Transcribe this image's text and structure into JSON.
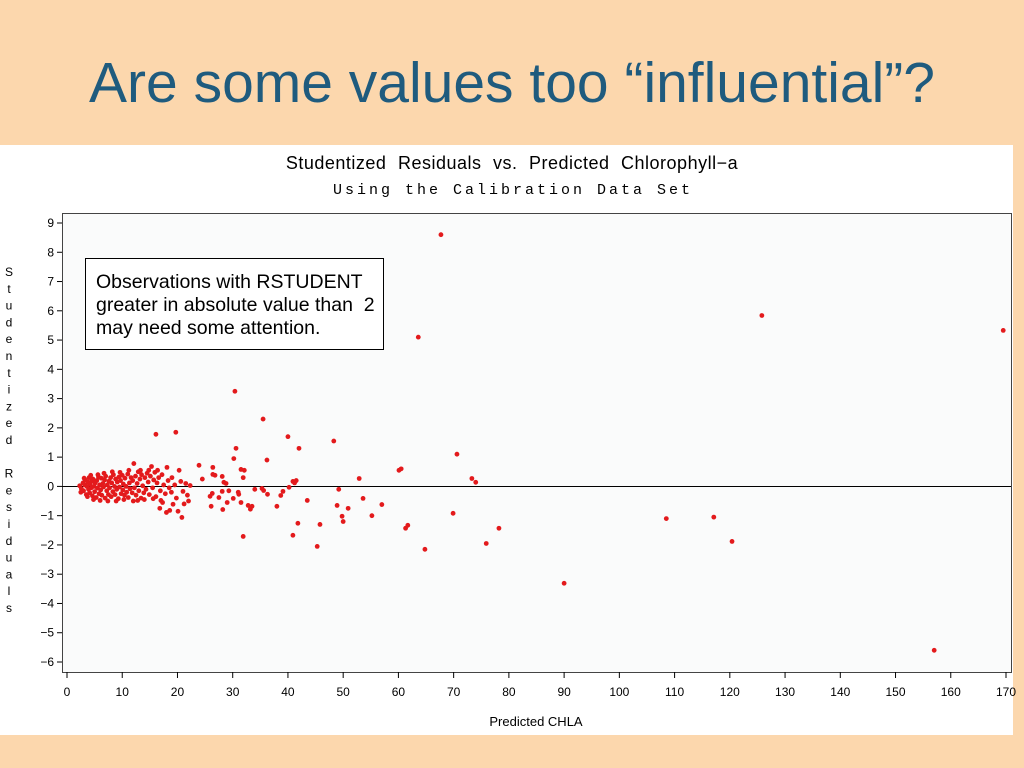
{
  "slide": {
    "title": "Are some values too “influential”?"
  },
  "colors": {
    "background": "#FCD7AD",
    "title": "#1F5B7E",
    "marker": "#E31A1C",
    "reference_line": "#000000"
  },
  "chart_data": {
    "type": "scatter",
    "title": "Studentized Residuals vs. Predicted Chlorophyll−a",
    "subtitle": "Using the Calibration Data Set",
    "xlabel": "Predicted CHLA",
    "ylabel": "Studentized Residuals",
    "xlim": [
      0,
      170
    ],
    "ylim": [
      -6,
      9
    ],
    "xticks": [
      0,
      10,
      20,
      30,
      40,
      50,
      60,
      70,
      80,
      90,
      100,
      110,
      120,
      130,
      140,
      150,
      160,
      170
    ],
    "yticks": [
      9,
      8,
      7,
      6,
      5,
      4,
      3,
      2,
      1,
      0,
      -1,
      -2,
      -3,
      -4,
      -5,
      -6
    ],
    "ytick_labels": [
      "9",
      "8",
      "7",
      "6",
      "5",
      "4",
      "3",
      "2",
      "1",
      "0",
      "−1",
      "−2",
      "−3",
      "−4",
      "−5",
      "−6"
    ],
    "reference_line_y": 0,
    "grid": false,
    "annotation": {
      "placement": "top-left",
      "lines": [
        "Observations with RSTUDENT",
        "greater in absolute value than  2",
        "may need some attention."
      ]
    },
    "series": [
      {
        "points": [
          [
            2.3,
            0.02
          ],
          [
            2.5,
            -0.2
          ],
          [
            2.6,
            -0.08
          ],
          [
            2.9,
            0.12
          ],
          [
            3.0,
            -0.15
          ],
          [
            3.1,
            0.28
          ],
          [
            3.2,
            0.05
          ],
          [
            3.3,
            0.22
          ],
          [
            3.5,
            -0.28
          ],
          [
            3.6,
            0.0
          ],
          [
            3.7,
            -0.35
          ],
          [
            3.8,
            0.15
          ],
          [
            3.9,
            -0.1
          ],
          [
            4.0,
            0.3
          ],
          [
            4.1,
            -0.22
          ],
          [
            4.2,
            0.08
          ],
          [
            4.3,
            0.38
          ],
          [
            4.4,
            -0.05
          ],
          [
            4.5,
            0.18
          ],
          [
            4.6,
            -0.32
          ],
          [
            4.7,
            0.25
          ],
          [
            4.8,
            -0.45
          ],
          [
            4.9,
            0.0
          ],
          [
            5.0,
            -0.18
          ],
          [
            5.1,
            0.12
          ],
          [
            5.3,
            -0.38
          ],
          [
            5.4,
            0.2
          ],
          [
            5.5,
            -0.06
          ],
          [
            5.6,
            0.4
          ],
          [
            5.7,
            0.32
          ],
          [
            5.8,
            -0.25
          ],
          [
            5.9,
            0.05
          ],
          [
            6.0,
            -0.48
          ],
          [
            6.1,
            -0.12
          ],
          [
            6.2,
            0.28
          ],
          [
            6.3,
            -0.3
          ],
          [
            6.5,
            0.1
          ],
          [
            6.6,
            -0.02
          ],
          [
            6.7,
            0.45
          ],
          [
            6.8,
            0.22
          ],
          [
            6.9,
            -0.4
          ],
          [
            7.0,
            0.35
          ],
          [
            7.2,
            -0.15
          ],
          [
            7.3,
            0.05
          ],
          [
            7.4,
            -0.5
          ],
          [
            7.5,
            -0.28
          ],
          [
            7.6,
            0.18
          ],
          [
            7.7,
            -0.05
          ],
          [
            7.9,
            0.3
          ],
          [
            8.0,
            -0.35
          ],
          [
            8.1,
            0.12
          ],
          [
            8.2,
            0.5
          ],
          [
            8.3,
            -0.18
          ],
          [
            8.4,
            0.4
          ],
          [
            8.6,
            0.0
          ],
          [
            8.7,
            -0.28
          ],
          [
            8.8,
            0.25
          ],
          [
            8.9,
            -0.5
          ],
          [
            9.0,
            -0.1
          ],
          [
            9.1,
            0.15
          ],
          [
            9.3,
            -0.42
          ],
          [
            9.4,
            0.32
          ],
          [
            9.5,
            -0.02
          ],
          [
            9.6,
            0.48
          ],
          [
            9.7,
            0.2
          ],
          [
            9.8,
            -0.25
          ],
          [
            10.0,
            0.38
          ],
          [
            10.1,
            -0.12
          ],
          [
            10.2,
            0.08
          ],
          [
            10.3,
            -0.45
          ],
          [
            10.4,
            -0.3
          ],
          [
            10.5,
            0.28
          ],
          [
            10.7,
            0.0
          ],
          [
            10.8,
            -0.2
          ],
          [
            11.0,
            0.42
          ],
          [
            11.1,
            -0.38
          ],
          [
            11.2,
            0.55
          ],
          [
            11.3,
            0.12
          ],
          [
            11.4,
            -0.08
          ],
          [
            11.6,
            0.3
          ],
          [
            11.8,
            -0.22
          ],
          [
            11.9,
            0.2
          ],
          [
            12.0,
            -0.5
          ],
          [
            12.1,
            0.78
          ],
          [
            12.2,
            -0.05
          ],
          [
            12.4,
            0.35
          ],
          [
            12.5,
            -0.3
          ],
          [
            12.7,
            0.1
          ],
          [
            12.8,
            -0.48
          ],
          [
            12.9,
            0.5
          ],
          [
            13.0,
            -0.15
          ],
          [
            13.2,
            0.25
          ],
          [
            13.3,
            0.55
          ],
          [
            13.4,
            -0.4
          ],
          [
            13.5,
            0.4
          ],
          [
            13.7,
            0.02
          ],
          [
            13.9,
            -0.22
          ],
          [
            14.0,
            -0.45
          ],
          [
            14.1,
            0.3
          ],
          [
            14.3,
            -0.1
          ],
          [
            14.5,
            0.45
          ],
          [
            14.7,
            0.15
          ],
          [
            14.8,
            0.55
          ],
          [
            14.9,
            -0.28
          ],
          [
            15.1,
            0.35
          ],
          [
            15.3,
            0.68
          ],
          [
            15.5,
            -0.05
          ],
          [
            15.6,
            -0.42
          ],
          [
            15.7,
            0.22
          ],
          [
            15.9,
            0.48
          ],
          [
            16.1,
            -0.35
          ],
          [
            16.1,
            1.78
          ],
          [
            16.3,
            0.12
          ],
          [
            16.4,
            0.55
          ],
          [
            16.6,
            0.3
          ],
          [
            16.8,
            -0.75
          ],
          [
            16.9,
            -0.15
          ],
          [
            17.0,
            -0.48
          ],
          [
            17.2,
            0.4
          ],
          [
            17.3,
            -0.55
          ],
          [
            17.5,
            0.05
          ],
          [
            17.8,
            -0.25
          ],
          [
            18.0,
            -0.89
          ],
          [
            18.1,
            0.65
          ],
          [
            18.3,
            0.2
          ],
          [
            18.5,
            -0.05
          ],
          [
            18.6,
            -0.82
          ],
          [
            18.9,
            -0.2
          ],
          [
            19.0,
            0.3
          ],
          [
            19.2,
            -0.61
          ],
          [
            19.5,
            0.05
          ],
          [
            19.7,
            1.85
          ],
          [
            19.8,
            -0.4
          ],
          [
            20.1,
            -0.85
          ],
          [
            20.3,
            0.55
          ],
          [
            20.6,
            0.17
          ],
          [
            20.8,
            -1.06
          ],
          [
            21.0,
            -0.17
          ],
          [
            21.2,
            -0.6
          ],
          [
            21.5,
            0.1
          ],
          [
            21.8,
            -0.3
          ],
          [
            22.0,
            -0.5
          ],
          [
            22.3,
            0.03
          ],
          [
            23.9,
            0.72
          ],
          [
            24.5,
            0.25
          ],
          [
            25.9,
            -0.34
          ],
          [
            26.1,
            -0.68
          ],
          [
            26.3,
            -0.24
          ],
          [
            26.4,
            0.65
          ],
          [
            26.4,
            0.41
          ],
          [
            26.8,
            0.38
          ],
          [
            27.5,
            -0.38
          ],
          [
            28.1,
            -0.17
          ],
          [
            28.1,
            0.34
          ],
          [
            28.2,
            -0.79
          ],
          [
            28.4,
            0.14
          ],
          [
            28.8,
            0.1
          ],
          [
            29.0,
            -0.55
          ],
          [
            29.3,
            -0.15
          ],
          [
            30.1,
            -0.41
          ],
          [
            30.2,
            0.95
          ],
          [
            30.4,
            3.25
          ],
          [
            30.6,
            1.3
          ],
          [
            31.0,
            -0.2
          ],
          [
            31.1,
            -0.27
          ],
          [
            31.5,
            0.58
          ],
          [
            31.5,
            -0.55
          ],
          [
            31.9,
            0.3
          ],
          [
            31.9,
            -1.71
          ],
          [
            32.1,
            0.55
          ],
          [
            32.8,
            -0.65
          ],
          [
            33.2,
            -0.78
          ],
          [
            33.5,
            -0.68
          ],
          [
            34.0,
            -0.1
          ],
          [
            35.3,
            -0.07
          ],
          [
            35.5,
            2.3
          ],
          [
            35.6,
            -0.14
          ],
          [
            36.2,
            0.9
          ],
          [
            36.3,
            -0.27
          ],
          [
            38.0,
            -0.68
          ],
          [
            38.7,
            -0.31
          ],
          [
            39.1,
            -0.17
          ],
          [
            40.0,
            1.7
          ],
          [
            40.2,
            -0.03
          ],
          [
            40.9,
            0.17
          ],
          [
            40.9,
            -1.67
          ],
          [
            41.2,
            0.12
          ],
          [
            41.5,
            0.2
          ],
          [
            41.8,
            -1.26
          ],
          [
            42.0,
            1.3
          ],
          [
            43.5,
            -0.48
          ],
          [
            45.3,
            -2.05
          ],
          [
            45.8,
            -1.3
          ],
          [
            48.3,
            1.55
          ],
          [
            48.9,
            -0.65
          ],
          [
            49.2,
            -0.1
          ],
          [
            49.8,
            -1.02
          ],
          [
            50.0,
            -1.2
          ],
          [
            50.9,
            -0.75
          ],
          [
            52.9,
            0.27
          ],
          [
            53.6,
            -0.41
          ],
          [
            55.2,
            -1.0
          ],
          [
            57.0,
            -0.62
          ],
          [
            60.1,
            0.55
          ],
          [
            60.5,
            0.6
          ],
          [
            61.3,
            -1.43
          ],
          [
            61.7,
            -1.33
          ],
          [
            63.6,
            5.1
          ],
          [
            64.8,
            -2.15
          ],
          [
            67.7,
            8.6
          ],
          [
            69.9,
            -0.92
          ],
          [
            70.6,
            1.1
          ],
          [
            73.3,
            0.27
          ],
          [
            74.0,
            0.14
          ],
          [
            75.9,
            -1.95
          ],
          [
            78.2,
            -1.43
          ],
          [
            90.0,
            -3.31
          ],
          [
            108.5,
            -1.1
          ],
          [
            117.1,
            -1.05
          ],
          [
            120.4,
            -1.88
          ],
          [
            125.8,
            5.84
          ],
          [
            157.0,
            -5.6
          ],
          [
            169.5,
            5.33
          ]
        ]
      }
    ]
  }
}
